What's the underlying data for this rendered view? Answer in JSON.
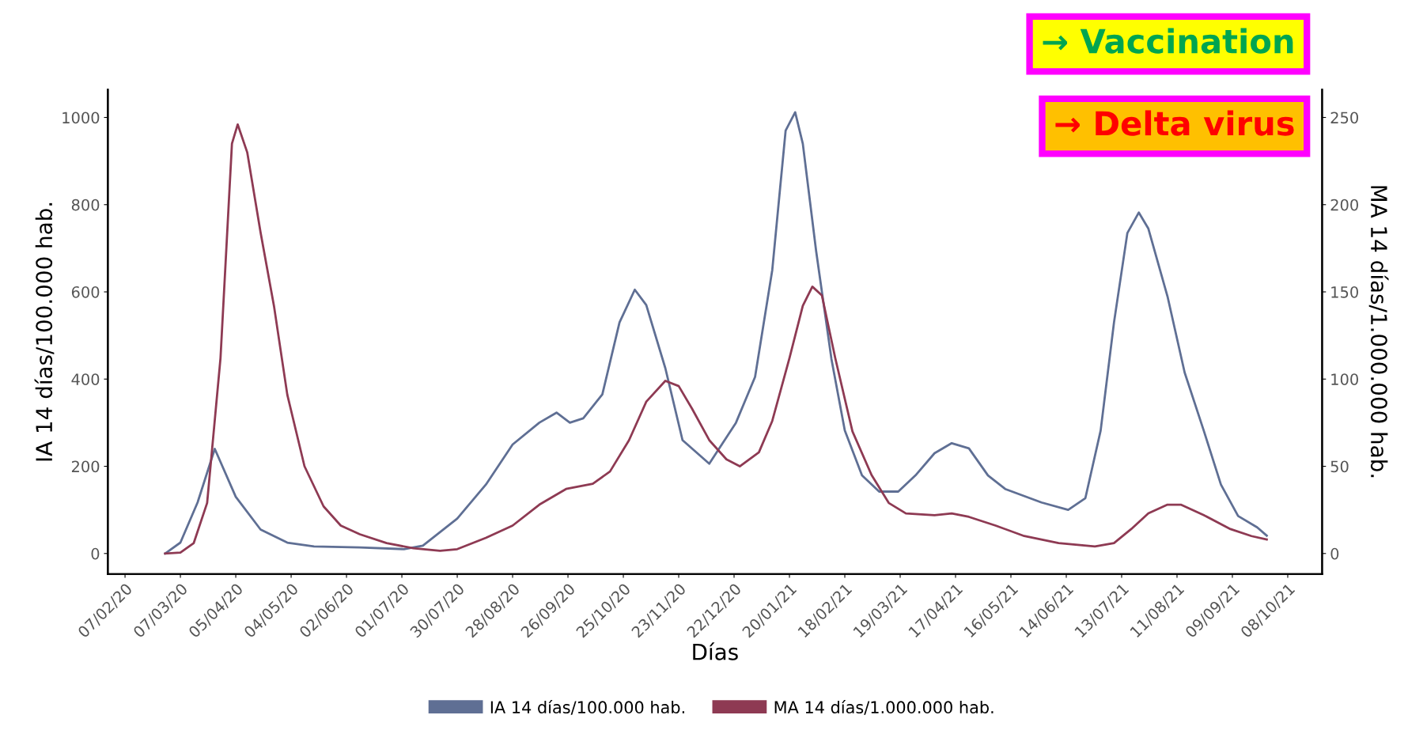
{
  "chart_data": {
    "type": "line",
    "xlabel": "Días",
    "ylabel": "IA 14 días/100.000 hab.",
    "y2label": "MA 14 días/1.000.000 hab.",
    "annotations": [
      "→ Vaccination",
      "→ Delta virus"
    ],
    "xlim": [
      "2020-01-29",
      "2021-10-26"
    ],
    "ylim": [
      -47,
      1064
    ],
    "y2lim": [
      -11.75,
      266
    ],
    "yticks": [
      0,
      200,
      400,
      600,
      800,
      1000
    ],
    "y2ticks": [
      0,
      50,
      100,
      150,
      200,
      250
    ],
    "xticks": [
      {
        "value": "2020-02-07",
        "label": "07/02/20"
      },
      {
        "value": "2020-03-07",
        "label": "07/03/20"
      },
      {
        "value": "2020-04-05",
        "label": "05/04/20"
      },
      {
        "value": "2020-05-04",
        "label": "04/05/20"
      },
      {
        "value": "2020-06-02",
        "label": "02/06/20"
      },
      {
        "value": "2020-07-01",
        "label": "01/07/20"
      },
      {
        "value": "2020-07-30",
        "label": "30/07/20"
      },
      {
        "value": "2020-08-28",
        "label": "28/08/20"
      },
      {
        "value": "2020-09-26",
        "label": "26/09/20"
      },
      {
        "value": "2020-10-25",
        "label": "25/10/20"
      },
      {
        "value": "2020-11-23",
        "label": "23/11/20"
      },
      {
        "value": "2020-12-22",
        "label": "22/12/20"
      },
      {
        "value": "2021-01-20",
        "label": "20/01/21"
      },
      {
        "value": "2021-02-18",
        "label": "18/02/21"
      },
      {
        "value": "2021-03-19",
        "label": "19/03/21"
      },
      {
        "value": "2021-04-17",
        "label": "17/04/21"
      },
      {
        "value": "2021-05-16",
        "label": "16/05/21"
      },
      {
        "value": "2021-06-14",
        "label": "14/06/21"
      },
      {
        "value": "2021-07-13",
        "label": "13/07/21"
      },
      {
        "value": "2021-08-11",
        "label": "11/08/21"
      },
      {
        "value": "2021-09-09",
        "label": "09/09/21"
      },
      {
        "value": "2021-10-08",
        "label": "08/10/21"
      }
    ],
    "grid": false,
    "legend": "bottom",
    "marker": "none",
    "line_style": "solid",
    "series": [
      {
        "name": "IA 14 días/100.000 hab.",
        "color": "#5f6f94",
        "x": [
          "2020-02-28",
          "2020-03-07",
          "2020-03-16",
          "2020-03-25",
          "2020-04-05",
          "2020-04-18",
          "2020-05-02",
          "2020-05-16",
          "2020-06-09",
          "2020-07-02",
          "2020-07-12",
          "2020-07-30",
          "2020-08-14",
          "2020-08-28",
          "2020-09-11",
          "2020-09-20",
          "2020-09-27",
          "2020-10-04",
          "2020-10-14",
          "2020-10-23",
          "2020-10-31",
          "2020-11-06",
          "2020-11-16",
          "2020-11-25",
          "2020-12-09",
          "2020-12-23",
          "2021-01-02",
          "2021-01-11",
          "2021-01-18",
          "2021-01-23",
          "2021-01-27",
          "2021-02-03",
          "2021-02-11",
          "2021-02-18",
          "2021-02-27",
          "2021-03-08",
          "2021-03-18",
          "2021-03-27",
          "2021-04-06",
          "2021-04-15",
          "2021-04-24",
          "2021-05-04",
          "2021-05-13",
          "2021-06-01",
          "2021-06-15",
          "2021-06-24",
          "2021-07-02",
          "2021-07-09",
          "2021-07-16",
          "2021-07-22",
          "2021-07-27",
          "2021-08-06",
          "2021-08-15",
          "2021-08-25",
          "2021-09-03",
          "2021-09-12",
          "2021-09-22",
          "2021-09-27"
        ],
        "values": [
          0,
          25,
          117,
          240,
          130,
          55,
          25,
          16,
          14,
          10,
          18,
          80,
          158,
          250,
          300,
          323,
          300,
          310,
          365,
          530,
          605,
          570,
          425,
          260,
          206,
          300,
          405,
          650,
          970,
          1012,
          940,
          693,
          446,
          282,
          179,
          142,
          142,
          179,
          230,
          253,
          241,
          179,
          148,
          117,
          100,
          127,
          282,
          530,
          735,
          782,
          745,
          590,
          415,
          282,
          158,
          86,
          60,
          41
        ]
      },
      {
        "name": "MA 14 días/1.000.000 hab.",
        "color": "#8e3a53",
        "axis": "y2",
        "x": [
          "2020-02-28",
          "2020-03-07",
          "2020-03-14",
          "2020-03-21",
          "2020-03-28",
          "2020-04-03",
          "2020-04-06",
          "2020-04-11",
          "2020-04-18",
          "2020-04-25",
          "2020-05-02",
          "2020-05-11",
          "2020-05-21",
          "2020-05-30",
          "2020-06-09",
          "2020-06-23",
          "2020-07-07",
          "2020-07-21",
          "2020-07-30",
          "2020-08-14",
          "2020-08-28",
          "2020-09-11",
          "2020-09-25",
          "2020-10-09",
          "2020-10-18",
          "2020-10-28",
          "2020-11-06",
          "2020-11-16",
          "2020-11-23",
          "2020-11-30",
          "2020-12-09",
          "2020-12-18",
          "2020-12-25",
          "2021-01-04",
          "2021-01-11",
          "2021-01-20",
          "2021-01-27",
          "2021-02-01",
          "2021-02-06",
          "2021-02-13",
          "2021-02-22",
          "2021-03-04",
          "2021-03-13",
          "2021-03-22",
          "2021-04-06",
          "2021-04-15",
          "2021-04-24",
          "2021-05-08",
          "2021-05-23",
          "2021-06-10",
          "2021-06-29",
          "2021-07-09",
          "2021-07-18",
          "2021-07-27",
          "2021-08-06",
          "2021-08-13",
          "2021-08-25",
          "2021-09-08",
          "2021-09-19",
          "2021-09-27"
        ],
        "values": [
          0,
          0.5,
          6,
          29,
          112,
          235,
          246,
          230,
          184,
          142,
          91,
          50,
          27,
          16,
          11,
          6,
          3,
          1.5,
          2.5,
          9,
          16,
          28,
          37,
          40,
          47,
          65,
          87,
          99,
          96,
          83,
          65,
          54,
          50,
          58,
          76,
          112,
          142,
          153,
          148,
          112,
          70,
          45,
          29,
          23,
          22,
          23,
          21,
          16,
          10,
          6,
          4,
          6,
          14,
          23,
          28,
          28,
          22,
          14,
          10,
          8
        ]
      }
    ]
  }
}
